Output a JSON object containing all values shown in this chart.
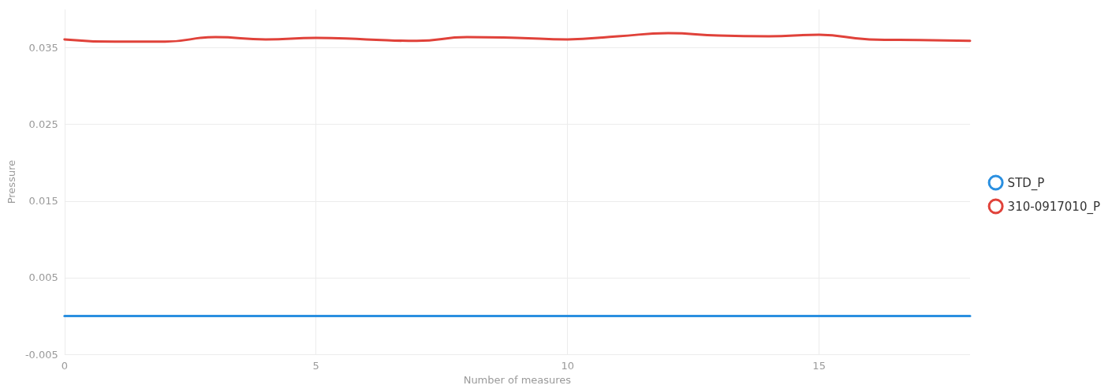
{
  "chart_data": {
    "type": "line",
    "xlabel": "Number of measures",
    "ylabel": "Pressure",
    "x": [
      0,
      1,
      2,
      3,
      4,
      5,
      6,
      7,
      8,
      9,
      10,
      11,
      12,
      13,
      14,
      15,
      16,
      17,
      18
    ],
    "series": [
      {
        "name": "STD_P",
        "color": "#2a8fe0",
        "values": [
          0,
          0,
          0,
          0,
          0,
          0,
          0,
          0,
          0,
          0,
          0,
          0,
          0,
          0,
          0,
          0,
          0,
          0,
          0
        ]
      },
      {
        "name": "310-0917010_P",
        "color": "#e0423a",
        "values": [
          0.0361,
          0.0358,
          0.0358,
          0.0364,
          0.0361,
          0.0363,
          0.0361,
          0.0359,
          0.0364,
          0.0363,
          0.0361,
          0.0365,
          0.0369,
          0.0366,
          0.0365,
          0.0367,
          0.0361,
          0.036,
          0.0359
        ]
      }
    ],
    "xlim": [
      0,
      18
    ],
    "xticks": [
      0,
      5,
      10,
      15
    ],
    "ylim": [
      -0.005,
      0.04
    ],
    "yticks": [
      -0.005,
      0.005,
      0.015,
      0.025,
      0.035
    ],
    "grid": true,
    "legend": "right",
    "marker": "none",
    "line_style": "solid"
  }
}
